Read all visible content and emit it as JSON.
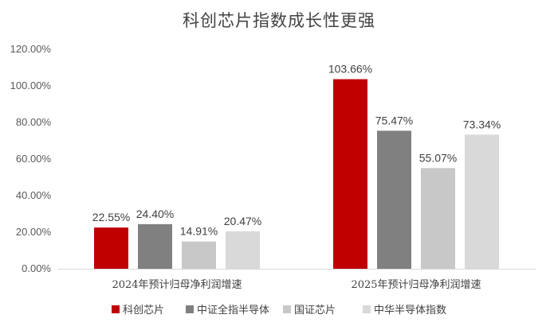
{
  "chart_data": {
    "type": "bar",
    "title": "科创芯片指数成长性更强",
    "categories": [
      "2024年预计归母净利润增速",
      "2025年预计归母净利润增速"
    ],
    "series": [
      {
        "name": "科创芯片",
        "values": [
          22.55,
          103.66
        ],
        "labels": [
          "22.55%",
          "103.66%"
        ],
        "color": "#c00000"
      },
      {
        "name": "中证全指半导体",
        "values": [
          24.4,
          75.47
        ],
        "labels": [
          "24.40%",
          "75.47%"
        ],
        "color": "#808080"
      },
      {
        "name": "国证芯片",
        "values": [
          14.91,
          55.07
        ],
        "labels": [
          "14.91%",
          "55.07%"
        ],
        "color": "#c8c8c8"
      },
      {
        "name": "中华半导体指数",
        "values": [
          20.47,
          73.34
        ],
        "labels": [
          "20.47%",
          "73.34%"
        ],
        "color": "#d9d9d9"
      }
    ],
    "ylim": [
      0,
      120
    ],
    "yticks": [
      "0.00%",
      "20.00%",
      "40.00%",
      "60.00%",
      "80.00%",
      "100.00%",
      "120.00%"
    ],
    "grid": false,
    "legend_position": "bottom"
  }
}
